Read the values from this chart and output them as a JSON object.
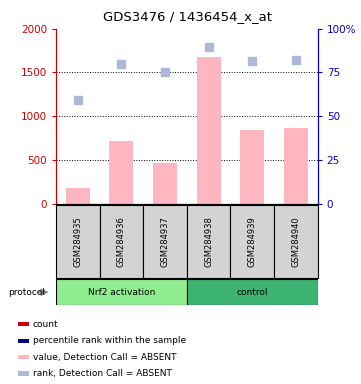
{
  "title": "GDS3476 / 1436454_x_at",
  "samples": [
    "GSM284935",
    "GSM284936",
    "GSM284937",
    "GSM284938",
    "GSM284939",
    "GSM284940"
  ],
  "bar_values": [
    175,
    720,
    460,
    1680,
    840,
    860
  ],
  "bar_color": "#ffb6c1",
  "rank_values": [
    1190,
    1600,
    1510,
    1790,
    1635,
    1640
  ],
  "rank_color": "#b0b8d8",
  "ylim_left": [
    0,
    2000
  ],
  "ylim_right": [
    0,
    100
  ],
  "yticks_left": [
    0,
    500,
    1000,
    1500,
    2000
  ],
  "yticks_right": [
    0,
    25,
    50,
    75,
    100
  ],
  "ytick_labels_right": [
    "0",
    "25",
    "50",
    "75",
    "100%"
  ],
  "left_axis_color": "#cc0000",
  "right_axis_color": "#0000cc",
  "legend_items": [
    {
      "label": "count",
      "color": "#cc0000"
    },
    {
      "label": "percentile rank within the sample",
      "color": "#00008b"
    },
    {
      "label": "value, Detection Call = ABSENT",
      "color": "#ffb6c1"
    },
    {
      "label": "rank, Detection Call = ABSENT",
      "color": "#b0b8d8"
    }
  ],
  "group1_label": "Nrf2 activation",
  "group1_color": "#90ee90",
  "group2_label": "control",
  "group2_color": "#3cb371",
  "protocol_label": "protocol",
  "background_color": "#ffffff"
}
